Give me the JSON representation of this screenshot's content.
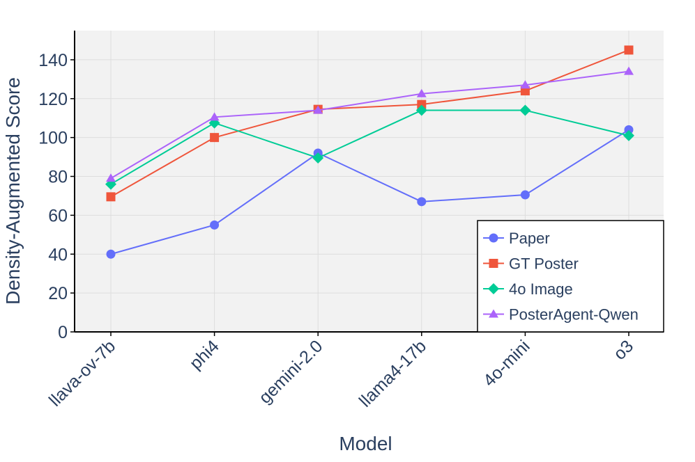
{
  "chart_data": {
    "type": "line",
    "title": "",
    "xlabel": "Model",
    "ylabel": "Density-Augmented Score",
    "categories": [
      "llava-ov-7b",
      "phi4",
      "gemini-2.0",
      "llama4-17b",
      "4o-mini",
      "o3"
    ],
    "ylim": [
      0,
      155
    ],
    "yticks": [
      0,
      20,
      40,
      60,
      80,
      100,
      120,
      140
    ],
    "grid": true,
    "legend_position": "bottom-right",
    "series": [
      {
        "name": "Paper",
        "color": "#636efa",
        "marker": "circle",
        "values": [
          40,
          55,
          92,
          67,
          70.5,
          104
        ]
      },
      {
        "name": "GT Poster",
        "color": "#ef553b",
        "marker": "square",
        "values": [
          69.5,
          100,
          114.5,
          117,
          124,
          145
        ]
      },
      {
        "name": "4o Image",
        "color": "#00cc96",
        "marker": "diamond",
        "values": [
          76,
          107.5,
          89.5,
          114,
          114,
          101
        ]
      },
      {
        "name": "PosterAgent-Qwen",
        "color": "#ab63fa",
        "marker": "triangle-up",
        "values": [
          79,
          110.5,
          114,
          122.5,
          127,
          134
        ]
      }
    ],
    "colors": {
      "plot_background": "#f2f2f2",
      "grid": "#dddddd",
      "axis": "#000000",
      "text": "#2a3f5f"
    }
  }
}
